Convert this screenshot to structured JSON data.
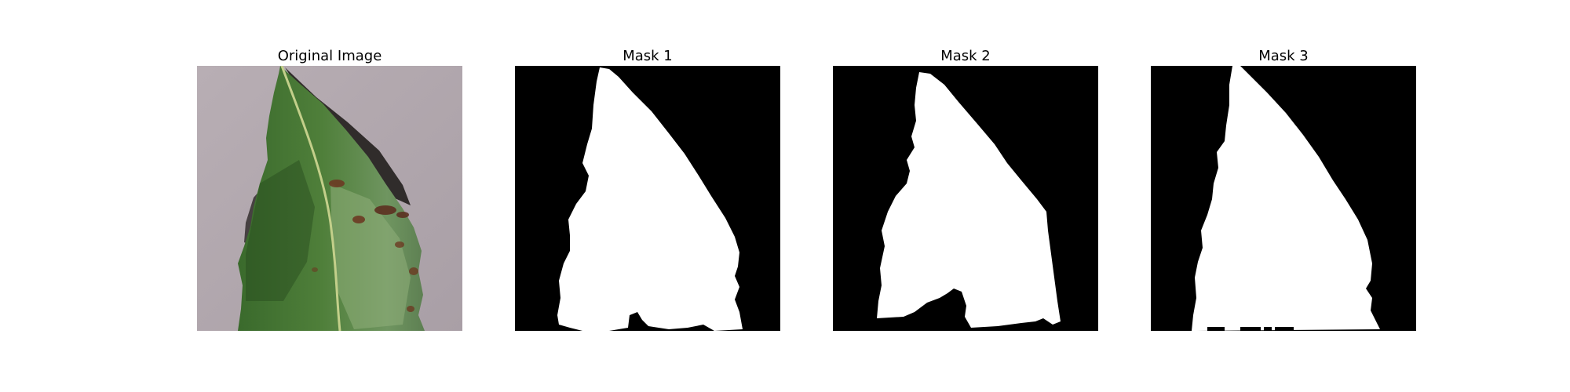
{
  "figure": {
    "panels": [
      {
        "title": "Original Image",
        "kind": "photo",
        "description_icon": "leaf-photo"
      },
      {
        "title": "Mask 1",
        "kind": "mask"
      },
      {
        "title": "Mask 2",
        "kind": "mask"
      },
      {
        "title": "Mask 3",
        "kind": "mask"
      }
    ]
  },
  "colors": {
    "page_background": "#ffffff",
    "mask_background": "#000000",
    "mask_foreground": "#ffffff",
    "photo_background": "#b3a9ae",
    "leaf_dark": "#2f5a24",
    "leaf_mid": "#4f7f3a",
    "leaf_light": "#7fa06a",
    "midrib": "#c3cf8a",
    "lesion": "#6b3a22",
    "shadow": "#1a1614"
  }
}
